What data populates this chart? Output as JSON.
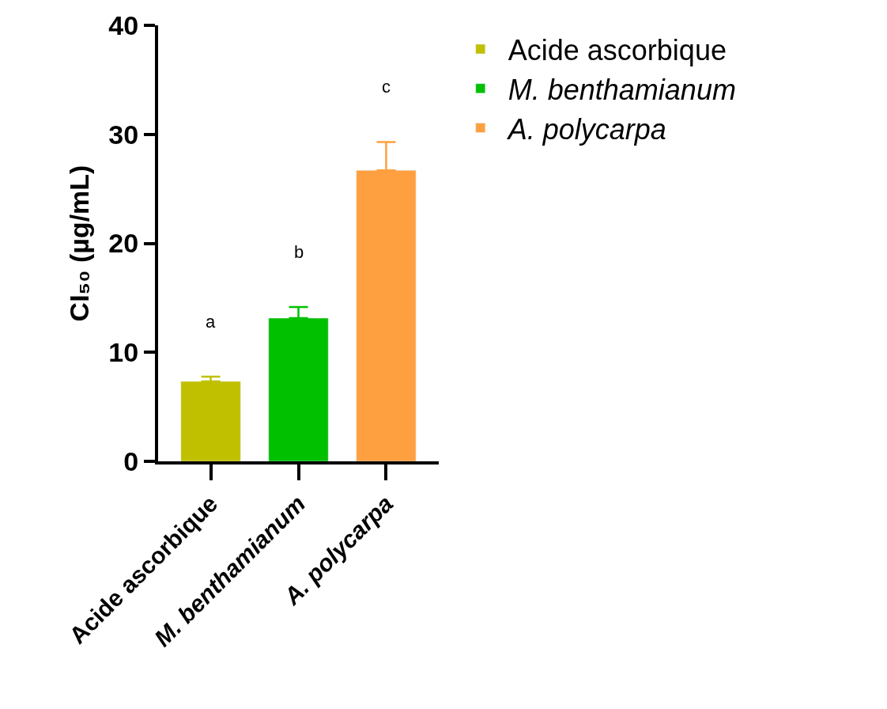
{
  "chart_data": {
    "type": "bar",
    "ylabel": "CI₅₀ (µg/mL)",
    "categories": [
      "Acide ascorbique",
      "M. benthamianum",
      "A. polycarpa"
    ],
    "series": [
      {
        "name": "Acide ascorbique",
        "color": "#c0c000",
        "values": [
          7.33,
          null,
          null
        ],
        "errors": [
          [
            7.33,
            7.77
          ],
          null,
          null
        ]
      },
      {
        "name": "M. benthamianum",
        "color": "#00c000",
        "values": [
          null,
          13.14,
          null
        ],
        "errors": [
          null,
          [
            13.14,
            14.16
          ],
          null
        ]
      },
      {
        "name": "A. polycarpa",
        "color": "#ffa040",
        "values": [
          null,
          null,
          26.7
        ],
        "errors": [
          null,
          null,
          [
            26.7,
            29.3
          ]
        ]
      }
    ],
    "ylim": [
      0,
      40
    ],
    "yticks": [
      0,
      10,
      20,
      30,
      40
    ],
    "legend": "top right",
    "annotations": [
      "a",
      "b",
      "c"
    ]
  }
}
